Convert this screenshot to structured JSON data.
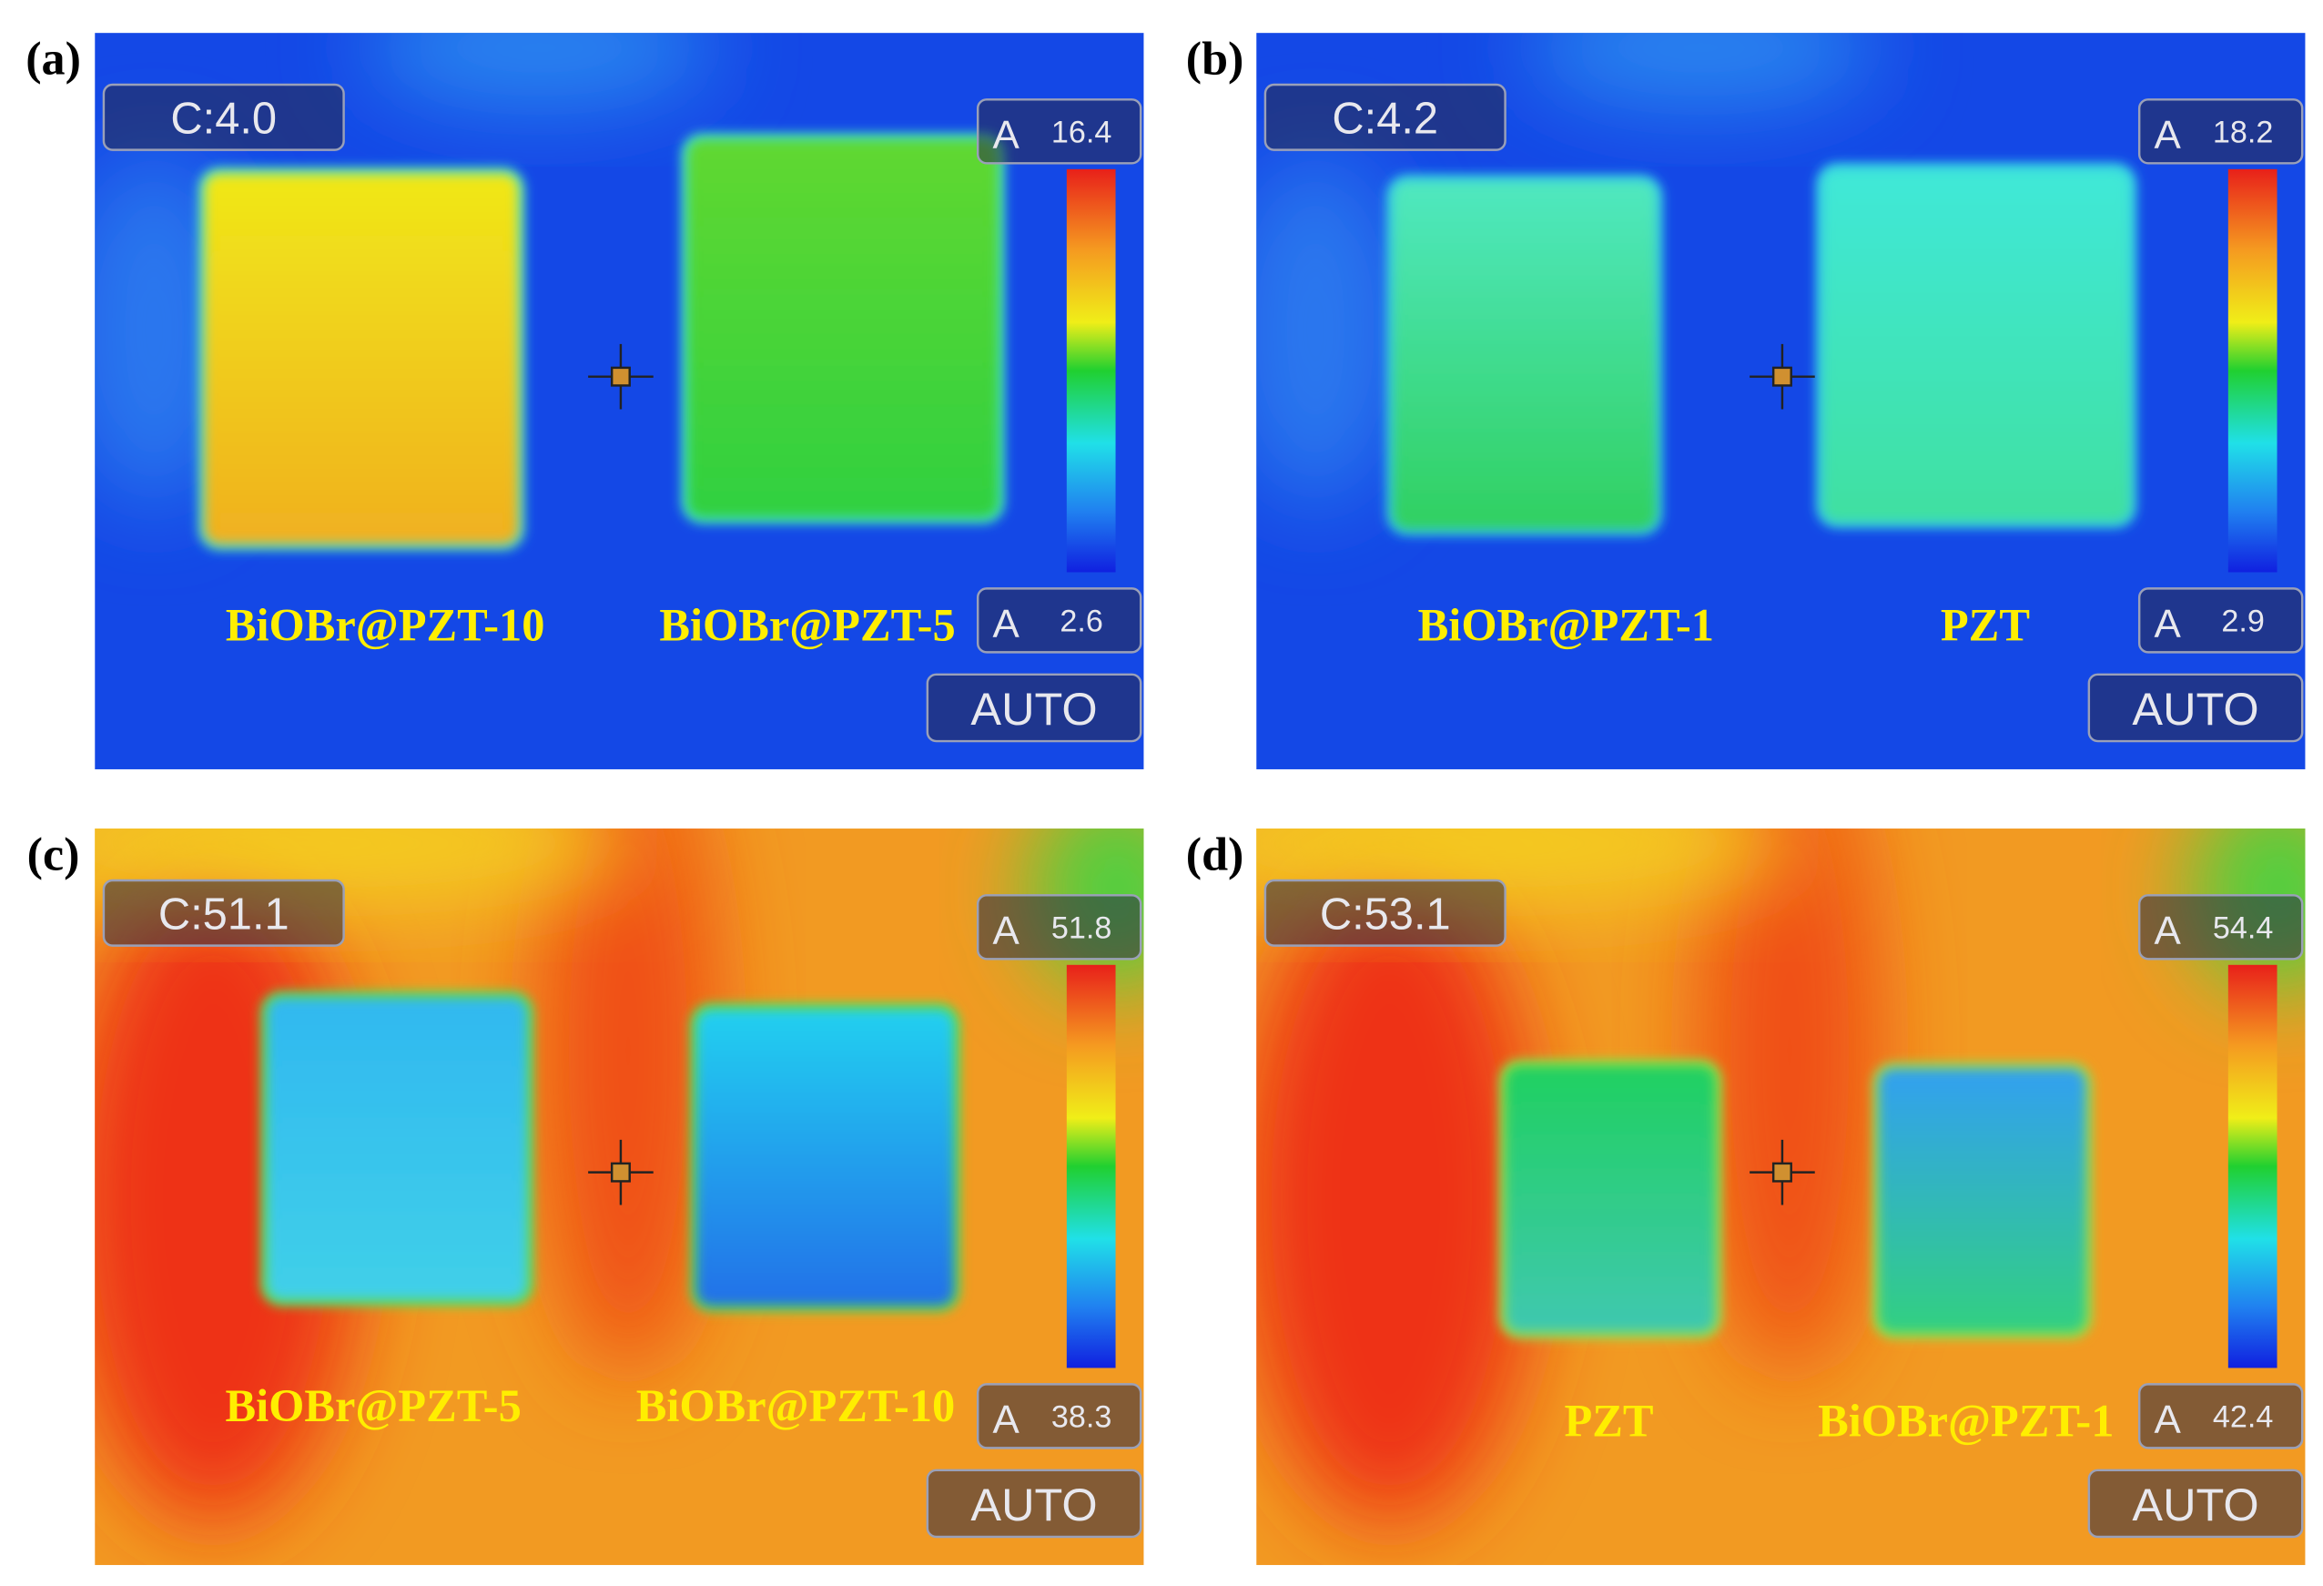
{
  "panels": [
    {
      "label": "(a)",
      "center_reading": "C:4.0",
      "max_mode": "A",
      "max": 16.4,
      "min_mode": "A",
      "min": 2.6,
      "range_mode": "AUTO",
      "samples": [
        "BiOBr@PZT-10",
        "BiOBr@PZT-5"
      ]
    },
    {
      "label": "(b)",
      "center_reading": "C:4.2",
      "max_mode": "A",
      "max": 18.2,
      "min_mode": "A",
      "min": 2.9,
      "range_mode": "AUTO",
      "samples": [
        "BiOBr@PZT-1",
        "PZT"
      ]
    },
    {
      "label": "(c)",
      "center_reading": "C:51.1",
      "max_mode": "A",
      "max": 51.8,
      "min_mode": "A",
      "min": 38.3,
      "range_mode": "AUTO",
      "samples": [
        "BiOBr@PZT-5",
        "BiOBr@PZT-10"
      ]
    },
    {
      "label": "(d)",
      "center_reading": "C:53.1",
      "max_mode": "A",
      "max": 54.4,
      "min_mode": "A",
      "min": 42.4,
      "range_mode": "AUTO",
      "samples": [
        "PZT",
        "BiOBr@PZT-1"
      ]
    }
  ]
}
